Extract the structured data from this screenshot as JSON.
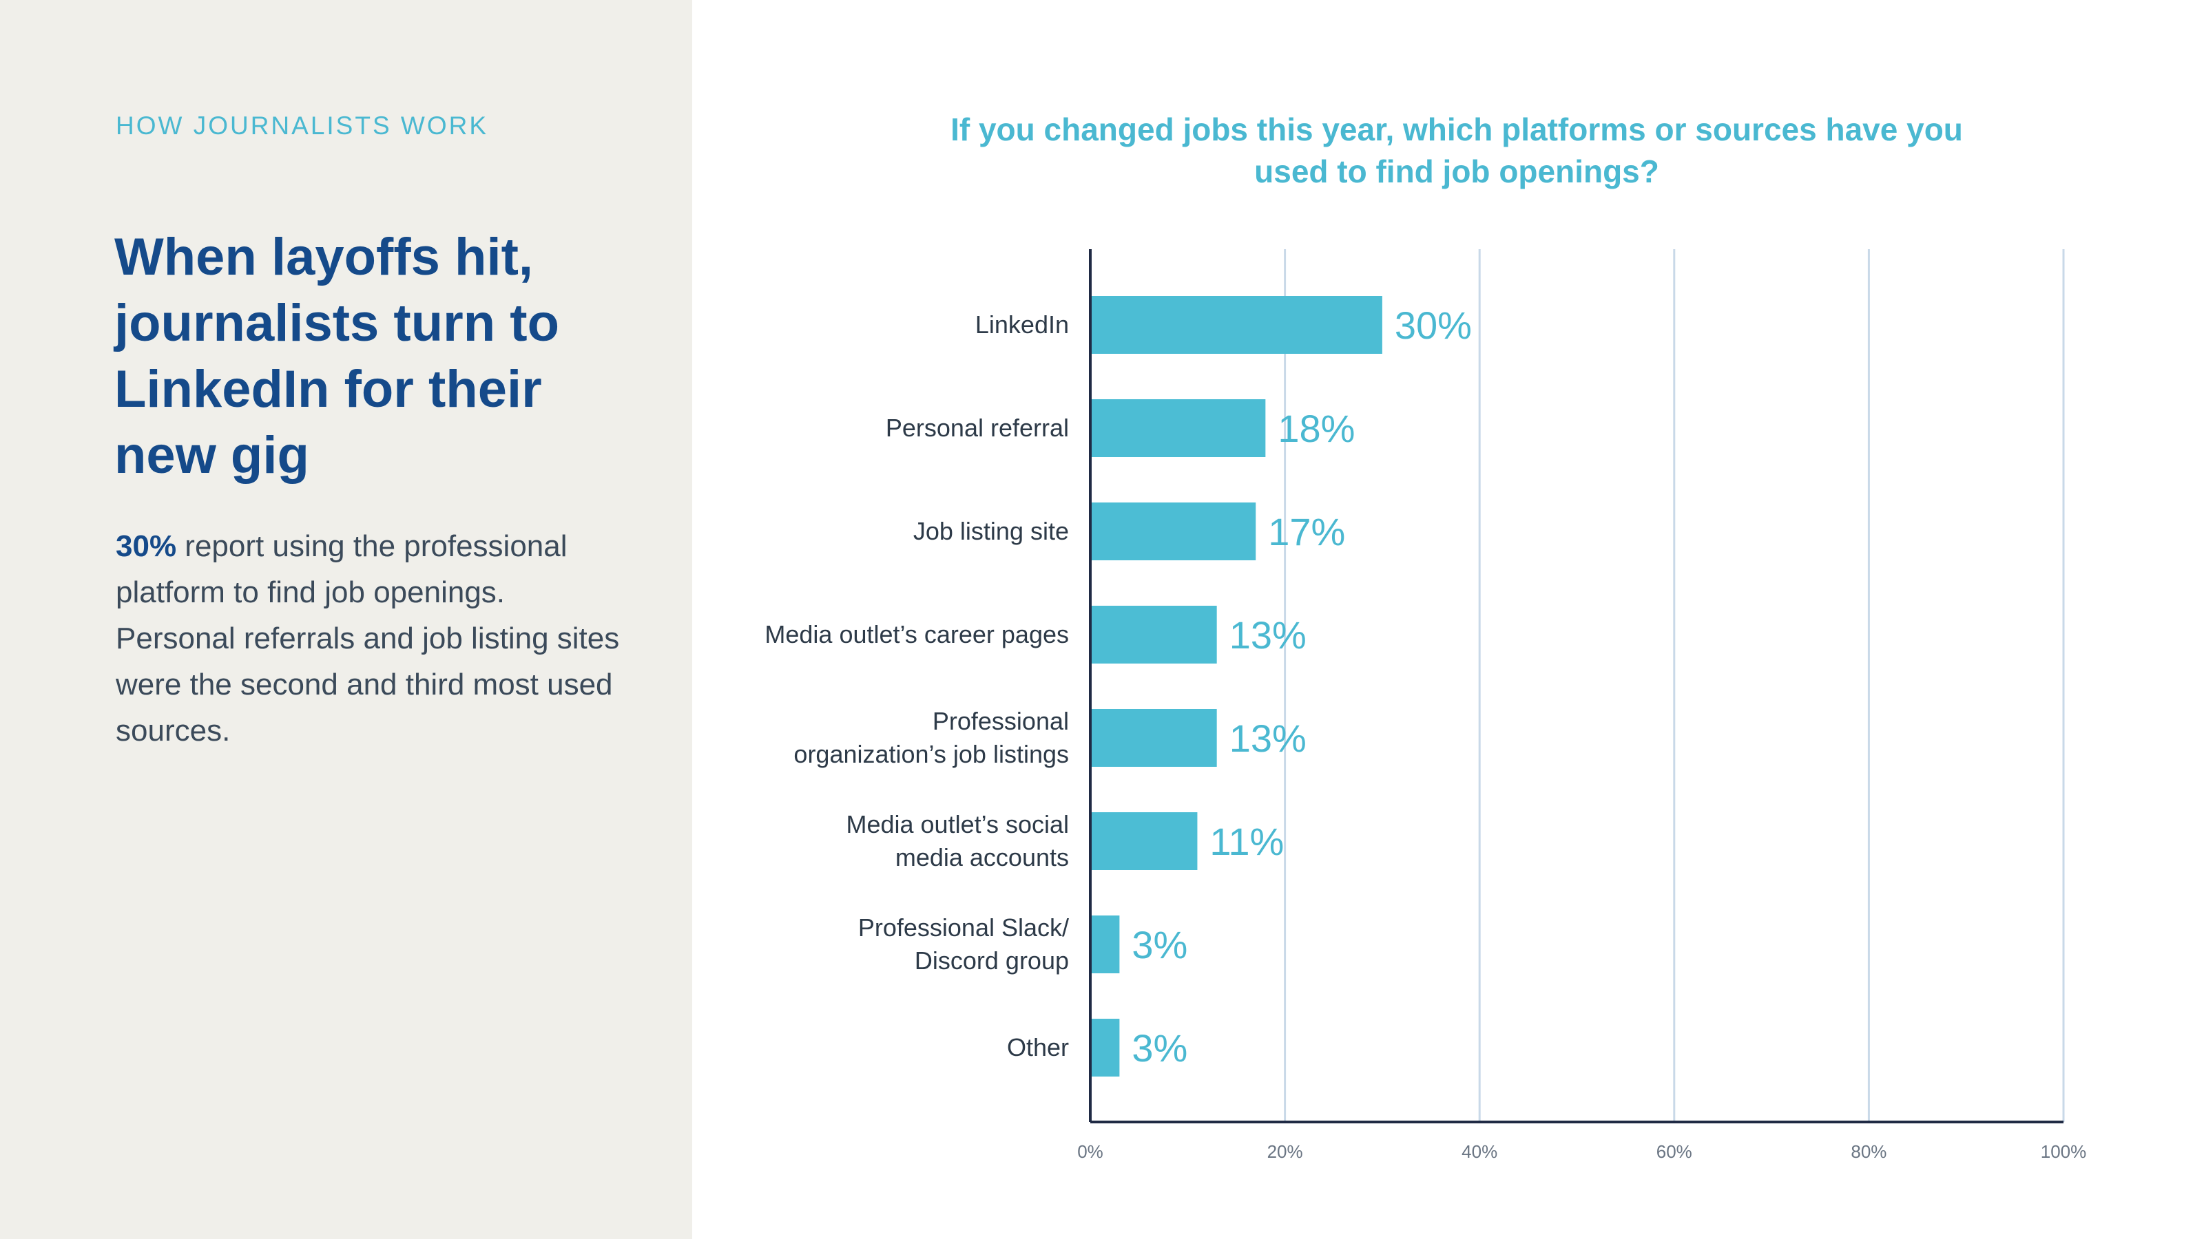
{
  "panel": {
    "kicker": "HOW JOURNALISTS WORK",
    "headline": "When layoffs hit, journalists turn to LinkedIn for their new gig",
    "body_highlight": "30%",
    "body_rest": " report using the professional platform to find job openings. Personal referrals and job listing sites were the second and third most used sources."
  },
  "colors": {
    "bar": "#4cbdd4",
    "accent": "#4ab8d1",
    "headline": "#154a8a",
    "grid": "#c9d9e8",
    "axis": "#1f2a44",
    "left_panel_bg": "#f0efea"
  },
  "chart_data": {
    "type": "bar",
    "orientation": "horizontal",
    "title": "If you changed jobs this year, which platforms or sources have you used to find job openings?",
    "categories": [
      [
        "LinkedIn"
      ],
      [
        "Personal referral"
      ],
      [
        "Job listing site"
      ],
      [
        "Media outlet’s career pages"
      ],
      [
        "Professional",
        "organization’s job listings"
      ],
      [
        "Media outlet’s social",
        "media accounts"
      ],
      [
        "Professional Slack/",
        "Discord group"
      ],
      [
        "Other"
      ]
    ],
    "values": [
      30,
      18,
      17,
      13,
      13,
      11,
      3,
      3
    ],
    "value_labels": [
      "30%",
      "18%",
      "17%",
      "13%",
      "13%",
      "11%",
      "3%",
      "3%"
    ],
    "xlim": [
      0,
      100
    ],
    "x_ticks": [
      0,
      20,
      40,
      60,
      80,
      100
    ],
    "x_tick_labels": [
      "0%",
      "20%",
      "40%",
      "60%",
      "80%",
      "100%"
    ],
    "grid": true,
    "legend": "none"
  }
}
